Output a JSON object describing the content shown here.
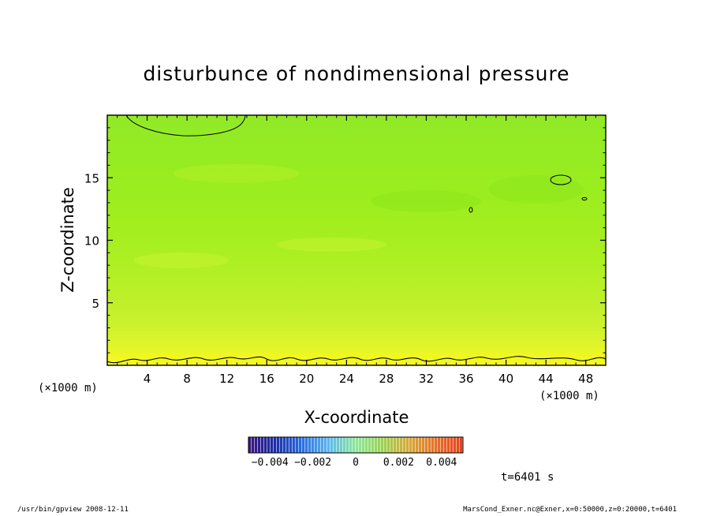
{
  "chart_data": {
    "type": "heatmap",
    "title": "disturbunce of nondimensional pressure",
    "xlabel": "X-coordinate",
    "ylabel": "Z-coordinate",
    "x_unit": "(×1000 m)",
    "y_unit": "(×1000 m)",
    "xlim": [
      0,
      50
    ],
    "ylim": [
      0,
      20
    ],
    "x_ticks": [
      4,
      8,
      12,
      16,
      20,
      24,
      28,
      32,
      36,
      40,
      44,
      48
    ],
    "y_ticks": [
      5,
      10,
      15
    ],
    "colorbar": {
      "range": [
        -0.005,
        0.005
      ],
      "tick_values": [
        -0.004,
        -0.002,
        0,
        0.002,
        0.004
      ],
      "tick_labels": [
        "−0.004",
        "−0.002",
        "0",
        "0.002",
        "0.004"
      ],
      "colors": {
        "neg_end": "#3a1780",
        "neg_mid": "#2f8fe8",
        "zero": "#8ee89a",
        "pos_mid": "#9ad44f",
        "pos_end": "#e8401e"
      }
    },
    "field_rows": [
      {
        "z": 0.5,
        "value": 0.0026
      },
      {
        "z": 1.5,
        "value": 0.0024
      },
      {
        "z": 3,
        "value": 0.0022
      },
      {
        "z": 5,
        "value": 0.0021
      },
      {
        "z": 8,
        "value": 0.0019
      },
      {
        "z": 11,
        "value": 0.0018
      },
      {
        "z": 14,
        "value": 0.0017
      },
      {
        "z": 17,
        "value": 0.0017
      },
      {
        "z": 19.5,
        "value": 0.0016
      }
    ],
    "time_label": "t=6401 s",
    "grid": false
  },
  "footer": {
    "left": "/usr/bin/gpview   2008-12-11",
    "right": "MarsCond_Exner.nc@Exner,x=0:50000,z=0:20000,t=6401"
  }
}
